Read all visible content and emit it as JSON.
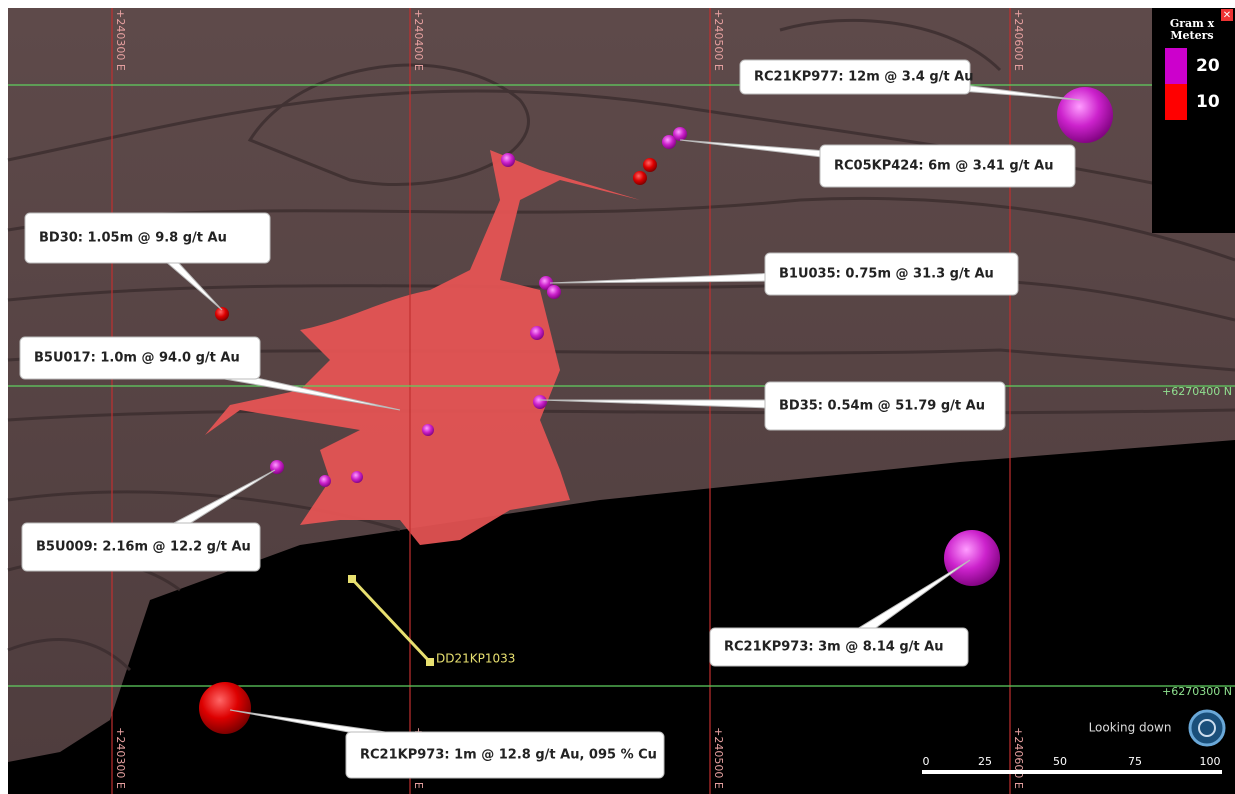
{
  "grid": {
    "eastings": [
      "+240300 E",
      "+240400 E",
      "+240500 E",
      "+240600 E"
    ],
    "northings": [
      "+6270400 N",
      "+6270300 N"
    ]
  },
  "legend": {
    "title": "Gram x Meters",
    "items": [
      {
        "label": "20",
        "color": "#cc00cc"
      },
      {
        "label": "10",
        "color": "#ff0000"
      }
    ]
  },
  "callouts": [
    {
      "text": "RC21KP977: 12m @ 3.4 g/t Au"
    },
    {
      "text": "RC05KP424: 6m @ 3.41 g/t Au"
    },
    {
      "text": "BD30: 1.05m @ 9.8 g/t Au"
    },
    {
      "text": "B1U035: 0.75m @ 31.3 g/t Au"
    },
    {
      "text": "B5U017: 1.0m @ 94.0 g/t Au"
    },
    {
      "text": "BD35: 0.54m @ 51.79 g/t Au"
    },
    {
      "text": "B5U009: 2.16m @ 12.2 g/t Au"
    },
    {
      "text": "RC21KP973: 3m @ 8.14 g/t Au"
    },
    {
      "text": "RC21KP973: 1m @ 12.8 g/t Au, 095 % Cu"
    }
  ],
  "drillhole": "DD21KP1033",
  "view": "Looking down",
  "scale": [
    "0",
    "25",
    "50",
    "75",
    "100"
  ]
}
